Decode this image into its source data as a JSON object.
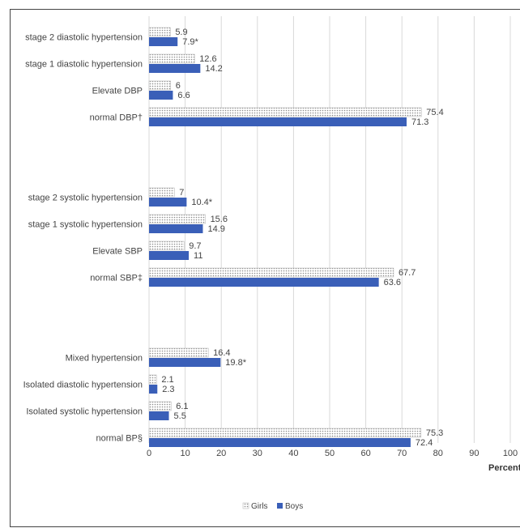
{
  "chart_data": {
    "type": "bar",
    "orientation": "horizontal",
    "xlabel": "Percents",
    "xlim": [
      0,
      100
    ],
    "xticks": [
      0,
      10,
      20,
      30,
      40,
      50,
      60,
      70,
      80,
      90,
      100
    ],
    "grid": true,
    "legend_position": "bottom-center",
    "groups": [
      {
        "categories": [
          {
            "label": "stage 2 diastolic hypertension",
            "girls": 5.9,
            "boys": 7.9,
            "girls_label": "5.9",
            "boys_label": "7.9*"
          },
          {
            "label": "stage 1 diastolic hypertension",
            "girls": 12.6,
            "boys": 14.2,
            "girls_label": "12.6",
            "boys_label": "14.2"
          },
          {
            "label": "Elevate DBP",
            "girls": 6,
            "boys": 6.6,
            "girls_label": "6",
            "boys_label": "6.6"
          },
          {
            "label": "normal DBP†",
            "girls": 75.4,
            "boys": 71.3,
            "girls_label": "75.4",
            "boys_label": "71.3"
          }
        ]
      },
      {
        "categories": [
          {
            "label": "stage 2 systolic hypertension",
            "girls": 7,
            "boys": 10.4,
            "girls_label": "7",
            "boys_label": "10.4*"
          },
          {
            "label": "stage 1 systolic hypertension",
            "girls": 15.6,
            "boys": 14.9,
            "girls_label": "15.6",
            "boys_label": "14.9"
          },
          {
            "label": "Elevate SBP",
            "girls": 9.7,
            "boys": 11,
            "girls_label": "9.7",
            "boys_label": "11"
          },
          {
            "label": "normal SBP‡",
            "girls": 67.7,
            "boys": 63.6,
            "girls_label": "67.7",
            "boys_label": "63.6"
          }
        ]
      },
      {
        "categories": [
          {
            "label": "Mixed hypertension",
            "girls": 16.4,
            "boys": 19.8,
            "girls_label": "16.4",
            "boys_label": "19.8*"
          },
          {
            "label": "Isolated diastolic hypertension",
            "girls": 2.1,
            "boys": 2.3,
            "girls_label": "2.1",
            "boys_label": "2.3"
          },
          {
            "label": "Isolated systolic hypertension",
            "girls": 6.1,
            "boys": 5.5,
            "girls_label": "6.1",
            "boys_label": "5.5"
          },
          {
            "label": "normal BP§",
            "girls": 75.3,
            "boys": 72.4,
            "girls_label": "75.3",
            "boys_label": "72.4"
          }
        ]
      }
    ],
    "series": [
      {
        "name": "Girls",
        "key": "girls",
        "style": "dotted",
        "color": "#9a9a9a"
      },
      {
        "name": "Boys",
        "key": "boys",
        "style": "solid",
        "color": "#3a5fb8"
      }
    ]
  }
}
